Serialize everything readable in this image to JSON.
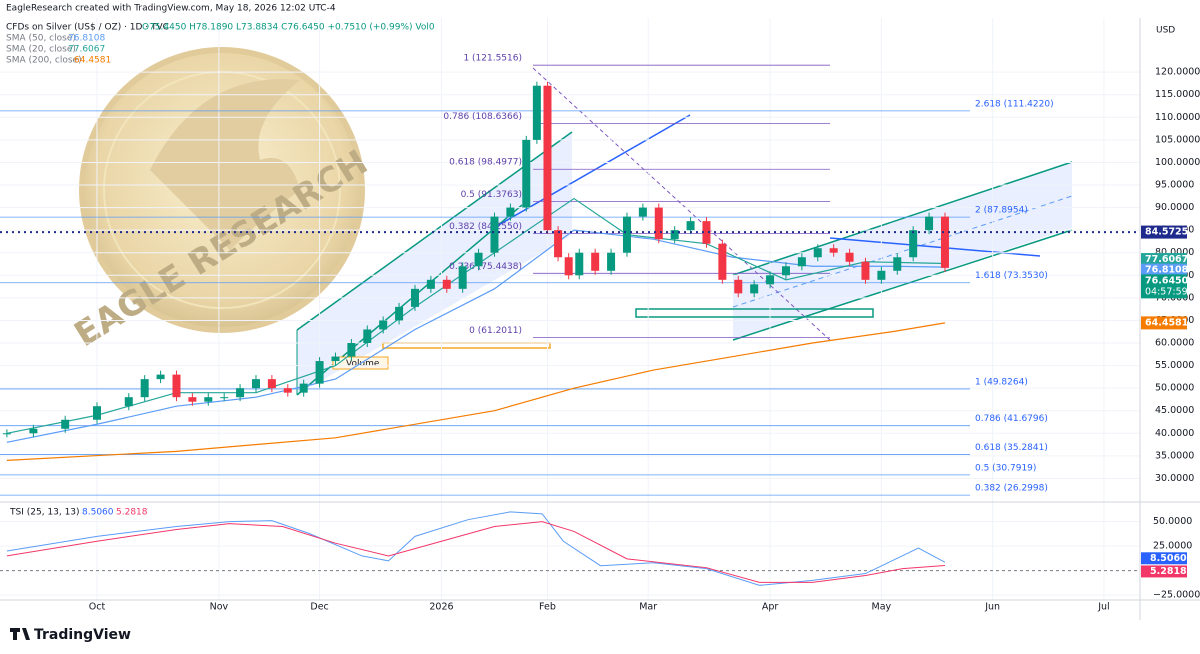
{
  "credit": "EagleResearch created with TradingView.com, May 18, 2026 12:02 UTC-4",
  "chart_data": {
    "type": "candlestick",
    "title": "CFDs on Silver (US$ / OZ) · 1D · TVC",
    "ohlc": "O75.4450 H78.1890 L73.8834 C76.6450 +0.7510 (+0.99%) Vol0",
    "currency": "USD",
    "watermark": "EAGLE RESEARCH",
    "annotation": "Volume",
    "countdown": "04:57:59",
    "xlim": [
      -18.3,
      196.8
    ],
    "xticks": [
      {
        "value": 0,
        "label": "Oct"
      },
      {
        "value": 23,
        "label": "Nov"
      },
      {
        "value": 42,
        "label": "Dec"
      },
      {
        "value": 65,
        "label": "2026"
      },
      {
        "value": 85,
        "label": "Feb"
      },
      {
        "value": 104,
        "label": "Mar"
      },
      {
        "value": 127,
        "label": "Apr"
      },
      {
        "value": 148,
        "label": "May"
      },
      {
        "value": 169,
        "label": "Jun"
      },
      {
        "value": 190,
        "label": "Jul"
      }
    ],
    "ylim": [
      25,
      132
    ],
    "yticks": [
      {
        "value": 30,
        "label": "30.0000"
      },
      {
        "value": 35,
        "label": "35.0000"
      },
      {
        "value": 40,
        "label": "40.0000"
      },
      {
        "value": 45,
        "label": "45.0000"
      },
      {
        "value": 50,
        "label": "50.0000"
      },
      {
        "value": 55,
        "label": "55.0000"
      },
      {
        "value": 60,
        "label": "60.0000"
      },
      {
        "value": 65,
        "label": "65.0000"
      },
      {
        "value": 70,
        "label": "70.0000"
      },
      {
        "value": 75,
        "label": "75.0000"
      },
      {
        "value": 80,
        "label": "80.0000"
      },
      {
        "value": 85,
        "label": "85.0000"
      },
      {
        "value": 90,
        "label": "90.0000"
      },
      {
        "value": 95,
        "label": "95.0000"
      },
      {
        "value": 100,
        "label": "100.0000"
      },
      {
        "value": 105,
        "label": "105.0000"
      },
      {
        "value": 110,
        "label": "110.0000"
      },
      {
        "value": 115,
        "label": "115.0000"
      },
      {
        "value": 120,
        "label": "120.0000"
      }
    ],
    "price": {
      "x": [
        -17,
        -12,
        -6,
        0,
        6,
        9,
        12,
        15,
        18,
        21,
        24,
        27,
        30,
        33,
        36,
        39,
        42,
        45,
        48,
        51,
        54,
        57,
        60,
        63,
        66,
        69,
        72,
        75,
        78,
        81,
        83,
        85,
        87,
        89,
        91,
        94,
        97,
        100,
        103,
        106,
        109,
        112,
        115,
        118,
        121,
        124,
        127,
        130,
        133,
        136,
        139,
        142,
        145,
        148,
        151,
        154,
        157,
        160
      ],
      "values": [
        40,
        41,
        43,
        46,
        48,
        52,
        53,
        48,
        47,
        48,
        48,
        50,
        52,
        50,
        49,
        51,
        56,
        57,
        60,
        63,
        65,
        68,
        72,
        74,
        72,
        77,
        80,
        88,
        90,
        105,
        117,
        85,
        79,
        75,
        80,
        76,
        80,
        88,
        90,
        83,
        85,
        87,
        82,
        74,
        71,
        73,
        75,
        77,
        79,
        81,
        80,
        78,
        74,
        76,
        79,
        85,
        88,
        76.645
      ],
      "last_label": "76.6450",
      "up_color": "#089981",
      "down_color": "#f23645"
    },
    "horizontal_line": {
      "value": 84.5725,
      "label": "84.5725",
      "color": "#1e2a8c"
    },
    "series": [
      {
        "name": "SMA (50, close)",
        "color": "#5b9cf6",
        "x": [
          -17,
          0,
          15,
          30,
          45,
          60,
          75,
          90,
          105,
          120,
          135,
          150,
          160
        ],
        "values": [
          38,
          42,
          46,
          48,
          52,
          63,
          72,
          85,
          83,
          79,
          77,
          77,
          76.8108
        ]
      },
      {
        "name": "SMA (20, close)",
        "color": "#26a69a",
        "x": [
          -17,
          0,
          15,
          30,
          45,
          60,
          75,
          90,
          100,
          115,
          130,
          145,
          160
        ],
        "values": [
          40,
          44,
          49,
          49,
          55,
          68,
          80,
          92,
          84,
          82,
          74,
          78,
          77.6067
        ]
      },
      {
        "name": "SMA (200, close)",
        "color": "#f57c00",
        "x": [
          -17,
          15,
          45,
          75,
          90,
          105,
          120,
          135,
          150,
          160
        ],
        "values": [
          34,
          36,
          39,
          45,
          50,
          54,
          57,
          60,
          62.5,
          64.4581
        ]
      }
    ],
    "fib_upper": [
      {
        "label": "1 (121.5516)",
        "value": 121.5516
      },
      {
        "label": "0.786 (108.6366)",
        "value": 108.6366
      },
      {
        "label": "0.618 (98.4977)",
        "value": 98.4977
      },
      {
        "label": "0.5 (91.3763)",
        "value": 91.3763
      },
      {
        "label": "0.382 (84.2550)",
        "value": 84.255
      },
      {
        "label": "0.236 (75.4438)",
        "value": 75.4438
      },
      {
        "label": "0 (61.2011)",
        "value": 61.2011
      }
    ],
    "fib_lower": [
      {
        "label": "2.618 (111.4220)",
        "value": 111.422
      },
      {
        "label": "2 (87.8954)",
        "value": 87.8954
      },
      {
        "label": "1.618 (73.3530)",
        "value": 73.353
      },
      {
        "label": "1 (49.8264)",
        "value": 49.8264
      },
      {
        "label": "0.786 (41.6796)",
        "value": 41.6796
      },
      {
        "label": "0.618 (35.2841)",
        "value": 35.2841
      },
      {
        "label": "0.5 (30.7919)",
        "value": 30.7919
      },
      {
        "label": "0.382 (26.2998)",
        "value": 26.2998
      }
    ],
    "tsi": {
      "name": "TSI (25, 13, 13)",
      "ylim": [
        -30,
        67
      ],
      "yticks": [
        {
          "value": 50,
          "label": "50.0000"
        },
        {
          "value": 25,
          "label": "25.0000"
        },
        {
          "value": -25,
          "label": "−25.0000"
        }
      ],
      "series": [
        {
          "name": "TSI",
          "color": "#5b9cf6",
          "x": [
            -17,
            0,
            15,
            25,
            33,
            40,
            50,
            55,
            60,
            70,
            78,
            84,
            88,
            95,
            105,
            115,
            125,
            135,
            145,
            150,
            155,
            160
          ],
          "values": [
            20,
            35,
            45,
            50,
            51,
            38,
            15,
            10,
            35,
            52,
            60,
            58,
            30,
            5,
            8,
            2,
            -15,
            -10,
            -3,
            10,
            23,
            8.506
          ],
          "last_label": "8.5060"
        },
        {
          "name": "Signal",
          "color": "#f23668",
          "x": [
            -17,
            0,
            15,
            25,
            35,
            45,
            55,
            65,
            75,
            84,
            90,
            100,
            115,
            125,
            135,
            145,
            152,
            160
          ],
          "values": [
            15,
            30,
            42,
            48,
            45,
            28,
            15,
            30,
            45,
            50,
            40,
            12,
            3,
            -12,
            -12,
            -5,
            2,
            5.2818
          ],
          "last_label": "5.2818"
        }
      ]
    }
  },
  "footer": "TradingView"
}
